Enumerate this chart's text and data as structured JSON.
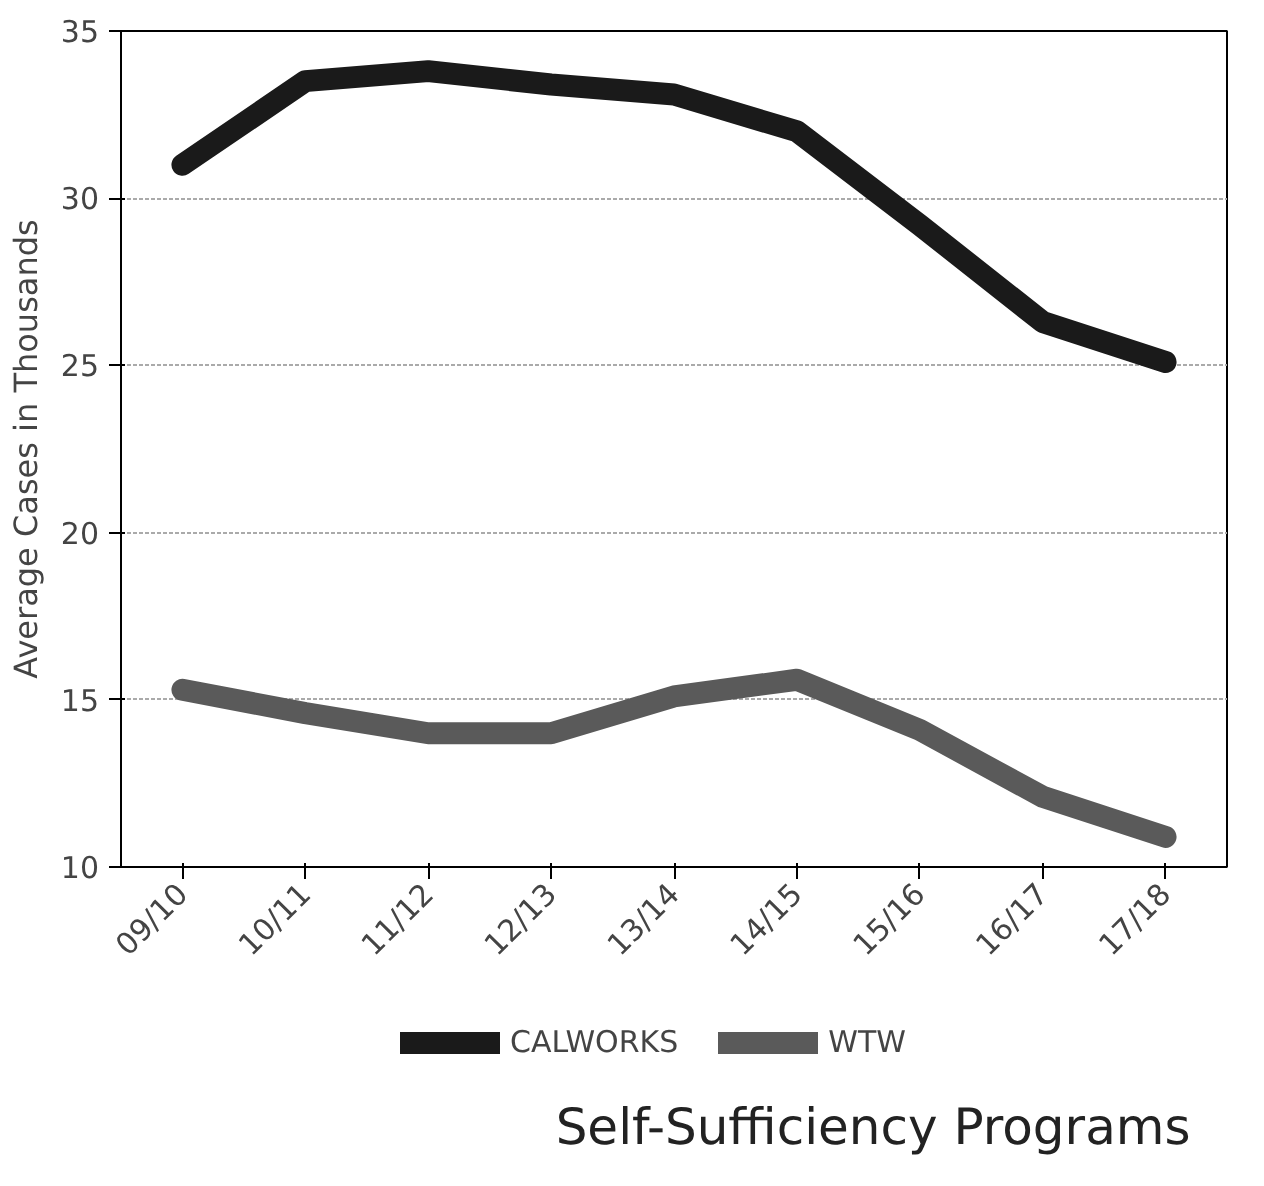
{
  "chart_data": {
    "type": "line",
    "title": "Self-Sufficiency Programs",
    "ylabel": "Average Cases in Thousands",
    "categories": [
      "09/10",
      "10/11",
      "11/12",
      "12/13",
      "13/14",
      "14/15",
      "15/16",
      "16/17",
      "17/18"
    ],
    "series": [
      {
        "name": "CALWORKS",
        "color": "#1a1a1a",
        "values": [
          31,
          33.5,
          33.8,
          33.4,
          33.1,
          32,
          29.2,
          26.3,
          25.1
        ]
      },
      {
        "name": "WTW",
        "color": "#5a5a5a",
        "values": [
          15.3,
          14.6,
          14,
          14,
          15.1,
          15.6,
          14.1,
          12.1,
          10.9
        ]
      }
    ],
    "ylim": [
      10,
      35
    ],
    "yticks": [
      10,
      15,
      20,
      25,
      30,
      35
    ],
    "grid": "y",
    "legend": "bottom",
    "marker": "none",
    "line_style": "solid"
  }
}
